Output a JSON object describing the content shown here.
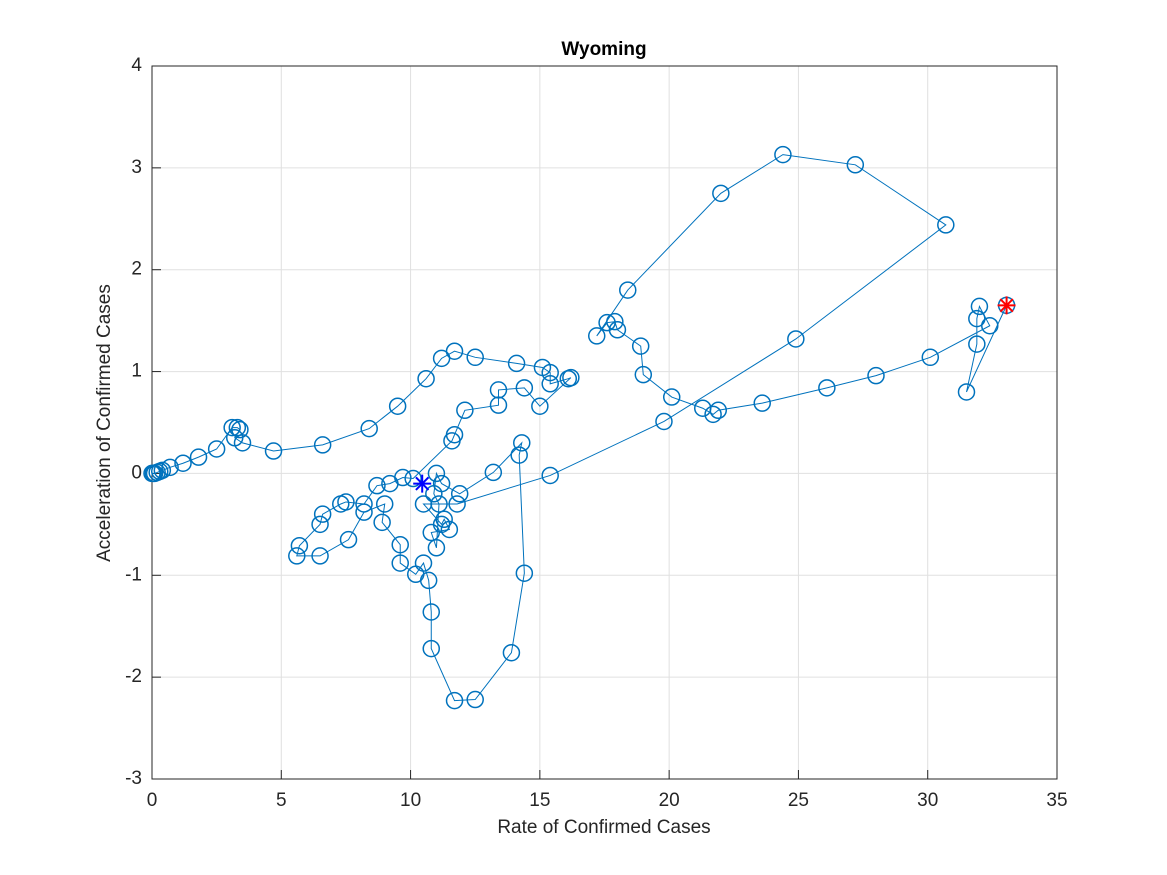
{
  "chart_data": {
    "type": "line",
    "title": "Wyoming",
    "x_label": "Rate of Confirmed Cases",
    "y_label": "Acceleration of Confirmed Cases",
    "xlim": [
      0,
      35
    ],
    "ylim": [
      -3,
      4
    ],
    "xticks": [
      0,
      5,
      10,
      15,
      20,
      25,
      30,
      35
    ],
    "yticks": [
      -3,
      -2,
      -1,
      0,
      1,
      2,
      3,
      4
    ],
    "grid": true,
    "series": [
      {
        "color": "#0072bd",
        "marker": "circle",
        "x": [
          0,
          0.05,
          0.1,
          0.2,
          0.3,
          0.4,
          0.7,
          1.2,
          1.8,
          2.5,
          3.1,
          3.3,
          3.4,
          3.2,
          3.5,
          4.7,
          6.6,
          8.4,
          9.5,
          10.6,
          11.2,
          11.7,
          12.5,
          14.1,
          15.1,
          15.4,
          15.4,
          16.1,
          16.2,
          15.0,
          14.4,
          13.4,
          13.4,
          12.1,
          11.7,
          11.6,
          10.1,
          9.7,
          9.2,
          8.7,
          8.2,
          7.5,
          7.3,
          6.6,
          6.5,
          5.7,
          5.6,
          6.5,
          7.6,
          8.2,
          9.0,
          8.9,
          9.6,
          9.6,
          10.2,
          10.5,
          10.7,
          10.8,
          10.8,
          11.7,
          12.5,
          13.9,
          14.4,
          14.2,
          14.3,
          13.2,
          11.9,
          11.2,
          11.0,
          10.9,
          11.1,
          11.0,
          10.8,
          11.5,
          11.3,
          11.2,
          10.5,
          11.8,
          15.4,
          19.8,
          24.9,
          30.7,
          27.2,
          24.4,
          22.0,
          18.4,
          17.2,
          17.6,
          17.9,
          18.0,
          18.9,
          19.0,
          20.1,
          21.3,
          21.7,
          21.9,
          23.6,
          26.1,
          28.0,
          30.1,
          32.4,
          32.0,
          31.9,
          31.9,
          31.5,
          33.05
        ],
        "y": [
          0,
          0,
          0,
          0.01,
          0.02,
          0.03,
          0.06,
          0.1,
          0.16,
          0.24,
          0.45,
          0.45,
          0.43,
          0.35,
          0.3,
          0.22,
          0.28,
          0.44,
          0.66,
          0.93,
          1.13,
          1.2,
          1.14,
          1.08,
          1.04,
          0.99,
          0.88,
          0.93,
          0.94,
          0.66,
          0.84,
          0.82,
          0.67,
          0.62,
          0.38,
          0.32,
          -0.05,
          -0.04,
          -0.1,
          -0.12,
          -0.3,
          -0.28,
          -0.3,
          -0.4,
          -0.5,
          -0.71,
          -0.81,
          -0.81,
          -0.65,
          -0.38,
          -0.3,
          -0.48,
          -0.7,
          -0.88,
          -0.99,
          -0.88,
          -1.05,
          -1.36,
          -1.72,
          -2.23,
          -2.22,
          -1.76,
          -0.98,
          0.18,
          0.3,
          0.01,
          -0.2,
          -0.1,
          0.0,
          -0.2,
          -0.3,
          -0.73,
          -0.58,
          -0.55,
          -0.45,
          -0.5,
          -0.3,
          -0.3,
          -0.02,
          0.51,
          1.32,
          2.44,
          3.03,
          3.13,
          2.75,
          1.8,
          1.35,
          1.48,
          1.49,
          1.41,
          1.25,
          0.97,
          0.75,
          0.64,
          0.58,
          0.62,
          0.69,
          0.84,
          0.96,
          1.14,
          1.45,
          1.64,
          1.52,
          1.27,
          0.8,
          1.65
        ]
      }
    ],
    "highlights": [
      {
        "x": 10.45,
        "y": -0.1,
        "color": "#0000ff"
      },
      {
        "x": 33.05,
        "y": 1.65,
        "color": "#ff0000"
      }
    ]
  }
}
